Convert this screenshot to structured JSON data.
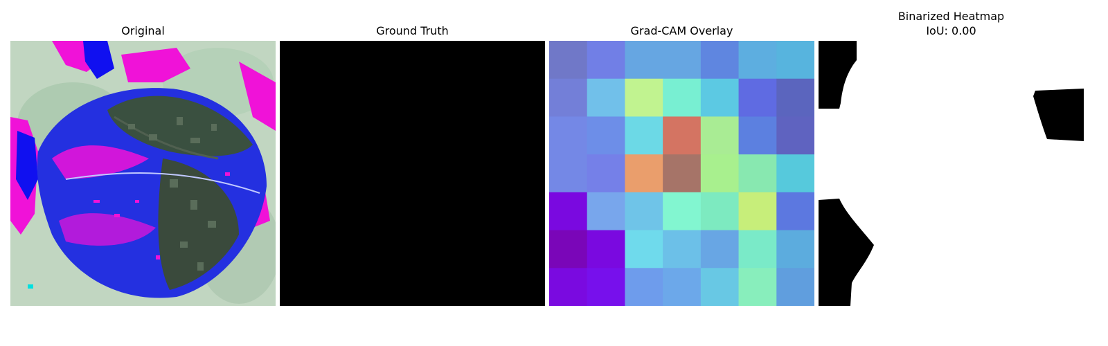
{
  "panels": [
    {
      "title": "Original",
      "image": "leaf-photo-color-shifted"
    },
    {
      "title": "Ground Truth",
      "image": "all-black-mask",
      "fill": "#000000"
    },
    {
      "title": "Grad-CAM Overlay",
      "image": "heatmap-grid-7x7"
    },
    {
      "title": "Binarized Heatmap",
      "subtitle": "IoU: 0.00",
      "image": "binary-mask"
    }
  ],
  "gradcam_grid": [
    [
      "#7078c8",
      "#717fe6",
      "#66a6e2",
      "#66a6e2",
      "#5f86e0",
      "#5daee0",
      "#57b4de"
    ],
    [
      "#737fd8",
      "#71c0ea",
      "#c1f390",
      "#78efd2",
      "#5cc9e3",
      "#5f6be2",
      "#5b65be"
    ],
    [
      "#7488e6",
      "#6d8ee8",
      "#6cd9e6",
      "#d47462",
      "#a9ec94",
      "#5c80e0",
      "#5f63c0"
    ],
    [
      "#7488e6",
      "#7580e8",
      "#ea9e6c",
      "#a67468",
      "#a8f08e",
      "#88e8b0",
      "#56c9dc"
    ],
    [
      "#7a09e0",
      "#78a6ec",
      "#6fc4e8",
      "#82f6d0",
      "#7deac0",
      "#c7ee7a",
      "#5c78e0"
    ],
    [
      "#7a06b8",
      "#7a09e0",
      "#6fdaec",
      "#6cc0e8",
      "#68a6e4",
      "#7aeac8",
      "#5cacde"
    ],
    [
      "#7a0ae0",
      "#7710ec",
      "#6e9cec",
      "#6ca8ea",
      "#68c8e4",
      "#88eebc",
      "#609ede"
    ]
  ]
}
